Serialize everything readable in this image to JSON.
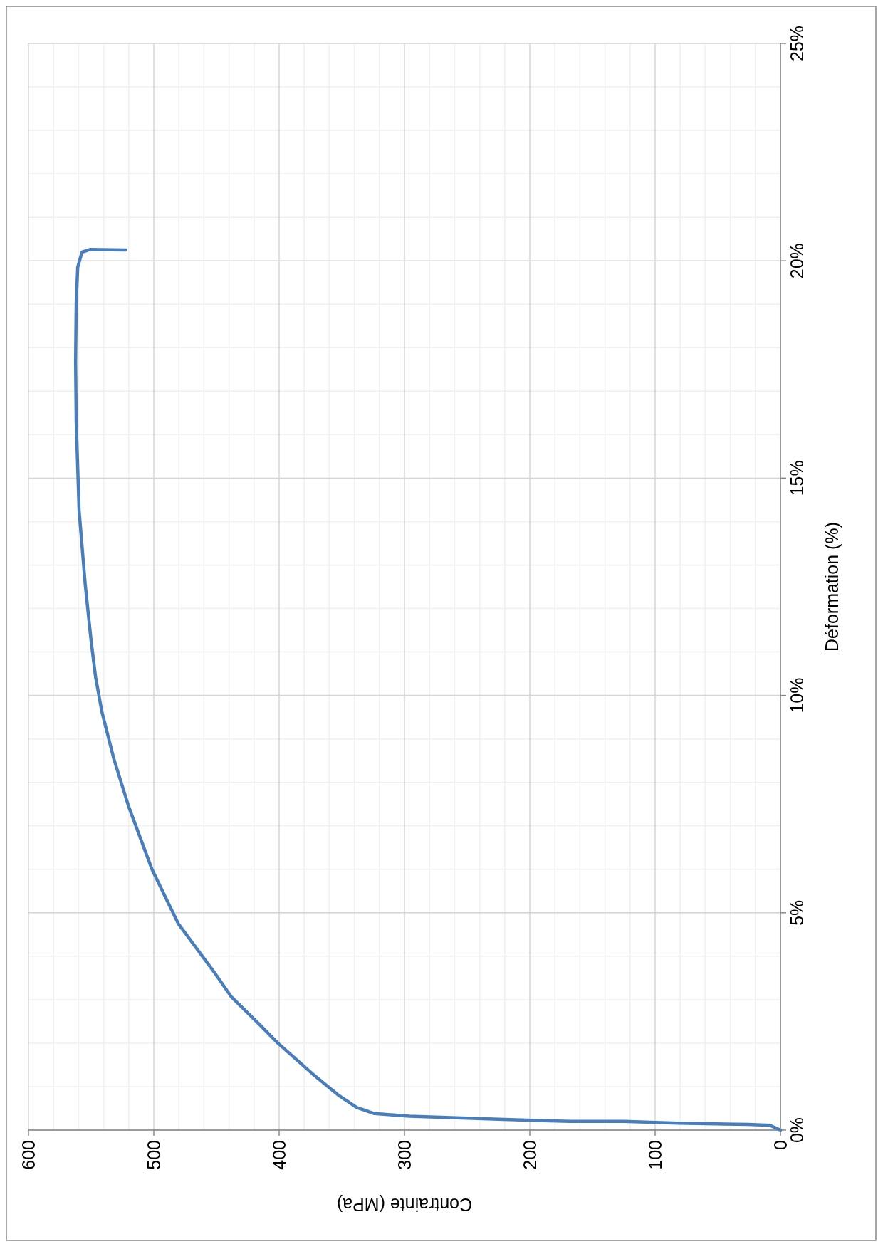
{
  "chart_data": {
    "type": "line",
    "xlabel": "Contrainte (MPa)",
    "ylabel": "Déformation (%)",
    "xlim": [
      600,
      0
    ],
    "xticks": [
      0,
      100,
      200,
      300,
      400,
      500,
      600
    ],
    "ylim": [
      0,
      25
    ],
    "yticks": [
      {
        "value": 0,
        "label": "0%"
      },
      {
        "value": 5,
        "label": "5%"
      },
      {
        "value": 10,
        "label": "10%"
      },
      {
        "value": 15,
        "label": "15%"
      },
      {
        "value": 20,
        "label": "20%"
      },
      {
        "value": 25,
        "label": "25%"
      }
    ],
    "grid": true,
    "marker": "none",
    "line_style": "solid",
    "series": [
      {
        "color": "#4a7ebb",
        "x": [
          0,
          8.5,
          25.6,
          82,
          125,
          168,
          225,
          296,
          324,
          338,
          353,
          372,
          401,
          415,
          438,
          452,
          480.5,
          501.6,
          520,
          531.7,
          541.4,
          546.5,
          550,
          554.7,
          559.6,
          561.9,
          562.4,
          561.9,
          560.7,
          557.3,
          551,
          522.6
        ],
        "values": [
          0,
          0.11,
          0.13,
          0.16,
          0.2,
          0.2,
          0.25,
          0.32,
          0.38,
          0.52,
          0.81,
          1.26,
          2.0,
          2.41,
          3.06,
          3.64,
          4.75,
          6.01,
          7.44,
          8.52,
          9.62,
          10.43,
          11.25,
          12.55,
          14.25,
          16.3,
          17.68,
          19.03,
          19.85,
          20.2,
          20.26,
          20.25
        ]
      }
    ]
  }
}
